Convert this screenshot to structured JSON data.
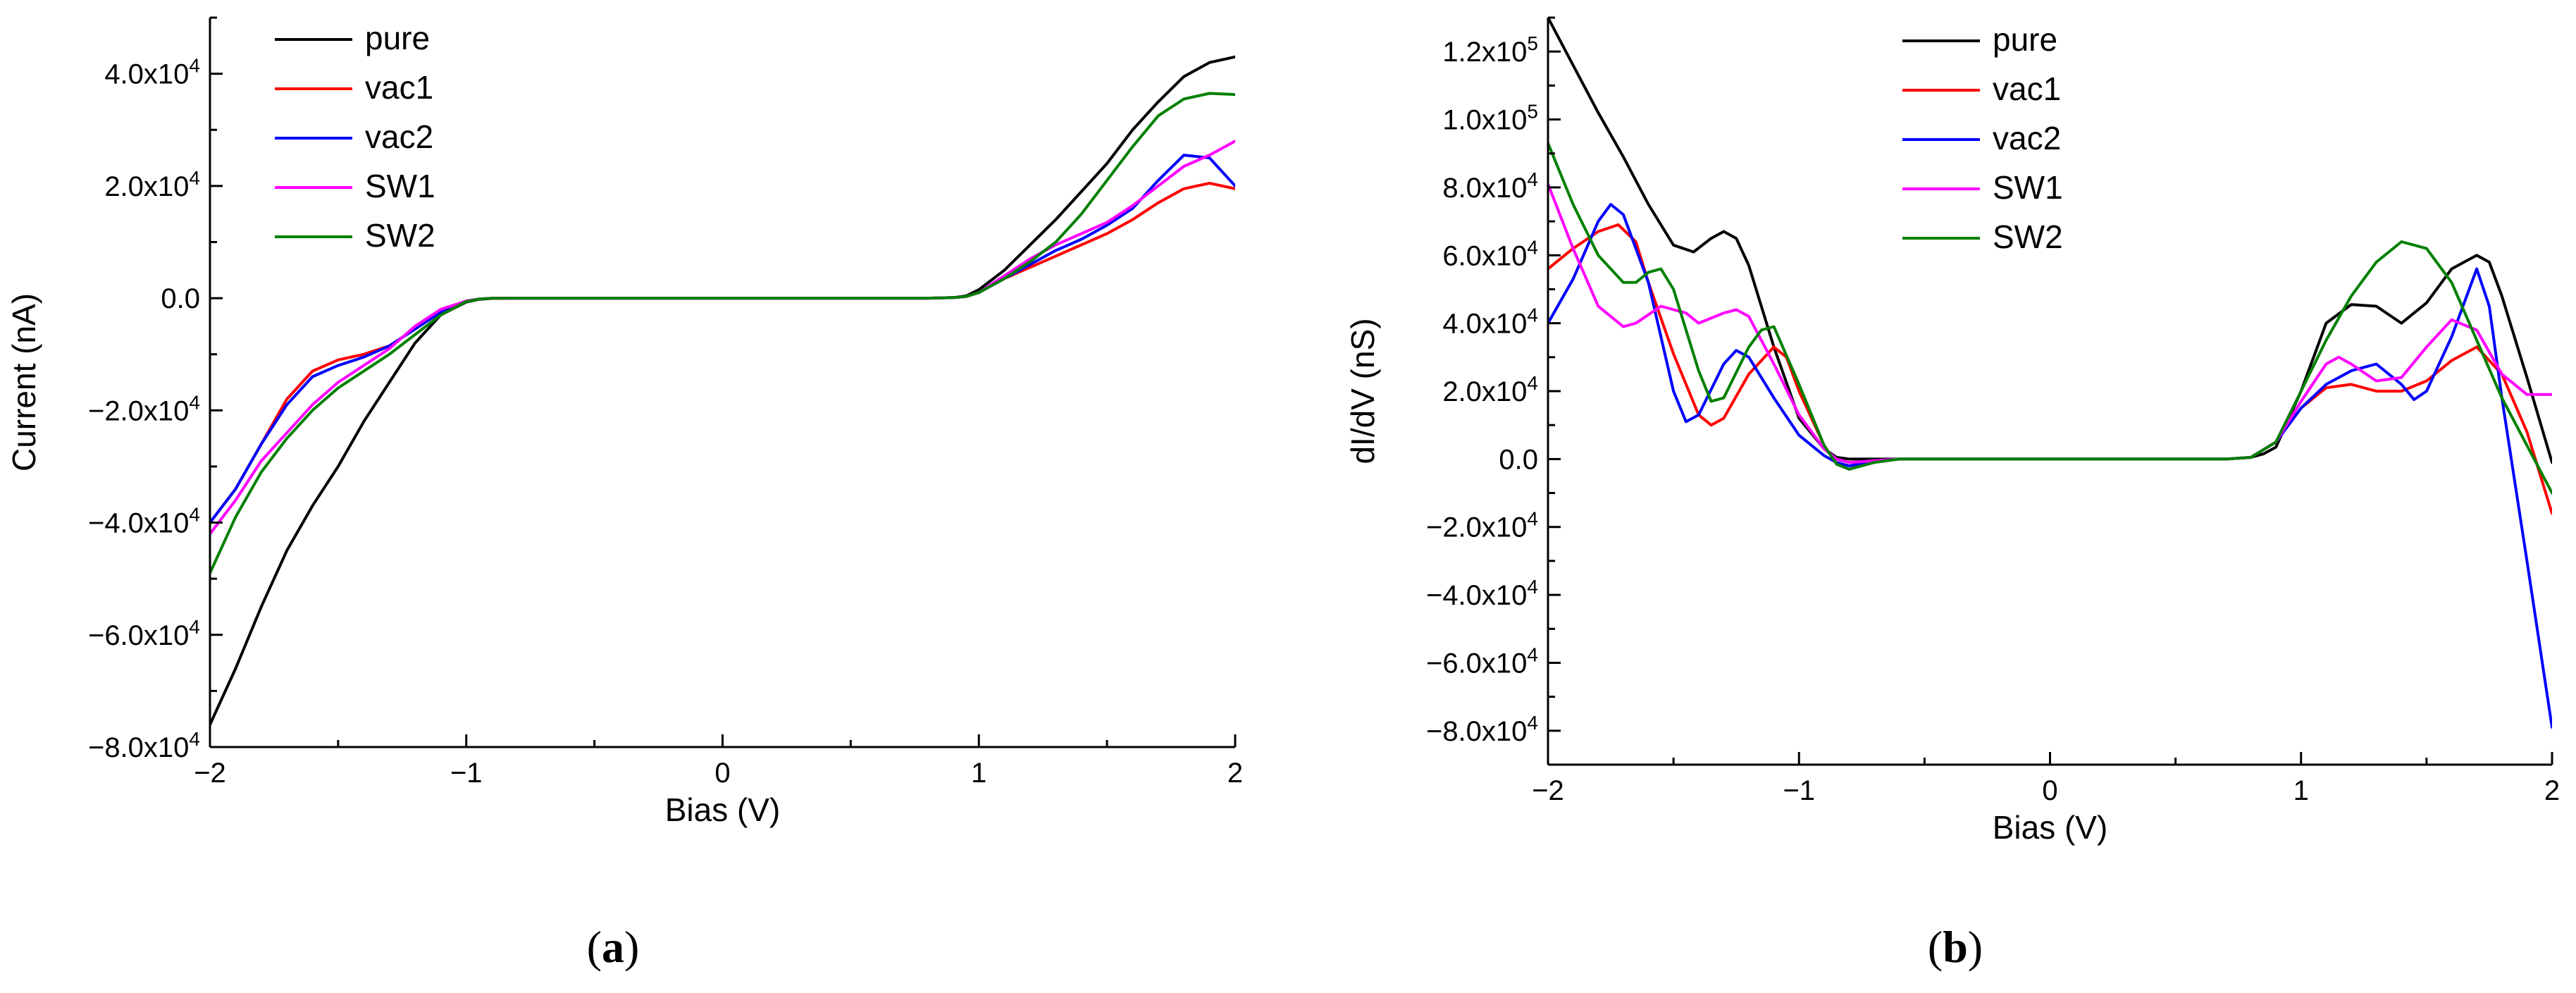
{
  "chart_data": [
    {
      "type": "line",
      "panel_label": "a",
      "title": "",
      "xlabel": "Bias (V)",
      "ylabel": "Current (nA)",
      "xlim": [
        -2,
        2
      ],
      "ylim": [
        -80000,
        50000
      ],
      "x_ticks": [
        -2,
        -1,
        0,
        1,
        2
      ],
      "x_tick_labels": [
        "−2",
        "−1",
        "0",
        "1",
        "2"
      ],
      "y_ticks": [
        -80000,
        -60000,
        -40000,
        -20000,
        0,
        20000,
        40000
      ],
      "y_tick_labels": [
        {
          "mant": "−8.0x10",
          "exp": "4"
        },
        {
          "mant": "−6.0x10",
          "exp": "4"
        },
        {
          "mant": "−4.0x10",
          "exp": "4"
        },
        {
          "mant": "−2.0x10",
          "exp": "4"
        },
        {
          "mant": "0.0",
          "exp": ""
        },
        {
          "mant": "2.0x10",
          "exp": "4"
        },
        {
          "mant": "4.0x10",
          "exp": "4"
        }
      ],
      "grid": false,
      "legend_position": "top-left",
      "series": [
        {
          "name": "pure",
          "color": "#000000",
          "x": [
            -2.0,
            -1.9,
            -1.8,
            -1.7,
            -1.6,
            -1.5,
            -1.4,
            -1.3,
            -1.2,
            -1.1,
            -1.0,
            -0.95,
            -0.9,
            -0.8,
            -0.6,
            -0.4,
            -0.2,
            0.0,
            0.2,
            0.4,
            0.6,
            0.8,
            0.9,
            0.95,
            1.0,
            1.1,
            1.2,
            1.3,
            1.4,
            1.5,
            1.6,
            1.7,
            1.8,
            1.9,
            2.0
          ],
          "y": [
            -76000,
            -66000,
            -55000,
            -45000,
            -37000,
            -30000,
            -22000,
            -15000,
            -8000,
            -3000,
            -700,
            -200,
            -50,
            0,
            0,
            0,
            0,
            0,
            0,
            0,
            0,
            0,
            100,
            400,
            1500,
            5000,
            9500,
            14000,
            19000,
            24000,
            30000,
            35000,
            39500,
            42000,
            43000
          ]
        },
        {
          "name": "vac1",
          "color": "#ff0000",
          "x": [
            -2.0,
            -1.9,
            -1.8,
            -1.7,
            -1.6,
            -1.5,
            -1.4,
            -1.3,
            -1.2,
            -1.1,
            -1.0,
            -0.95,
            -0.9,
            -0.8,
            -0.6,
            -0.4,
            -0.2,
            0.0,
            0.2,
            0.4,
            0.6,
            0.8,
            0.9,
            0.95,
            1.0,
            1.1,
            1.2,
            1.3,
            1.4,
            1.5,
            1.6,
            1.7,
            1.8,
            1.9,
            2.0
          ],
          "y": [
            -40000,
            -34000,
            -26000,
            -18000,
            -13000,
            -11000,
            -10000,
            -8500,
            -5500,
            -2500,
            -500,
            -150,
            -30,
            0,
            0,
            0,
            0,
            0,
            0,
            0,
            0,
            0,
            100,
            300,
            1000,
            3500,
            5500,
            7500,
            9500,
            11500,
            14000,
            17000,
            19500,
            20500,
            19500
          ]
        },
        {
          "name": "vac2",
          "color": "#0000ff",
          "x": [
            -2.0,
            -1.9,
            -1.8,
            -1.7,
            -1.6,
            -1.5,
            -1.4,
            -1.3,
            -1.2,
            -1.1,
            -1.0,
            -0.95,
            -0.9,
            -0.8,
            -0.6,
            -0.4,
            -0.2,
            0.0,
            0.2,
            0.4,
            0.6,
            0.8,
            0.9,
            0.95,
            1.0,
            1.1,
            1.2,
            1.3,
            1.4,
            1.5,
            1.6,
            1.7,
            1.8,
            1.9,
            2.0
          ],
          "y": [
            -40000,
            -34000,
            -26000,
            -19000,
            -14000,
            -12000,
            -10500,
            -8500,
            -5500,
            -2500,
            -500,
            -150,
            -30,
            0,
            0,
            0,
            0,
            0,
            0,
            0,
            0,
            0,
            100,
            300,
            1000,
            3500,
            6000,
            8500,
            10500,
            13000,
            16000,
            21000,
            25500,
            25000,
            20000
          ]
        },
        {
          "name": "SW1",
          "color": "#ff00ff",
          "x": [
            -2.0,
            -1.9,
            -1.8,
            -1.7,
            -1.6,
            -1.5,
            -1.4,
            -1.3,
            -1.2,
            -1.1,
            -1.0,
            -0.95,
            -0.9,
            -0.8,
            -0.6,
            -0.4,
            -0.2,
            0.0,
            0.2,
            0.4,
            0.6,
            0.8,
            0.9,
            0.95,
            1.0,
            1.1,
            1.2,
            1.3,
            1.4,
            1.5,
            1.6,
            1.7,
            1.8,
            1.9,
            2.0
          ],
          "y": [
            -42000,
            -36000,
            -29000,
            -24000,
            -19000,
            -15000,
            -12000,
            -9000,
            -5000,
            -2000,
            -500,
            -150,
            -30,
            0,
            0,
            0,
            0,
            0,
            0,
            0,
            0,
            0,
            100,
            300,
            1000,
            4000,
            7000,
            9500,
            11500,
            13500,
            16500,
            20000,
            23500,
            25500,
            28000
          ]
        },
        {
          "name": "SW2",
          "color": "#008000",
          "x": [
            -2.0,
            -1.9,
            -1.8,
            -1.7,
            -1.6,
            -1.5,
            -1.4,
            -1.3,
            -1.2,
            -1.1,
            -1.0,
            -0.95,
            -0.9,
            -0.8,
            -0.6,
            -0.4,
            -0.2,
            0.0,
            0.2,
            0.4,
            0.6,
            0.8,
            0.9,
            0.95,
            1.0,
            1.1,
            1.2,
            1.3,
            1.4,
            1.5,
            1.6,
            1.7,
            1.8,
            1.9,
            2.0
          ],
          "y": [
            -49000,
            -39000,
            -31000,
            -25000,
            -20000,
            -16000,
            -13000,
            -10000,
            -6500,
            -3000,
            -600,
            -150,
            -30,
            0,
            0,
            0,
            0,
            0,
            0,
            0,
            0,
            0,
            100,
            300,
            1000,
            3500,
            6500,
            10000,
            15000,
            21000,
            27000,
            32500,
            35500,
            36500,
            36300
          ]
        }
      ]
    },
    {
      "type": "line",
      "panel_label": "b",
      "title": "",
      "xlabel": "Bias (V)",
      "ylabel": "dI/dV (nS)",
      "xlim": [
        -2,
        2
      ],
      "ylim": [
        -90000,
        130000
      ],
      "x_ticks": [
        -2,
        -1,
        0,
        1,
        2
      ],
      "x_tick_labels": [
        "−2",
        "−1",
        "0",
        "1",
        "2"
      ],
      "y_ticks": [
        -80000,
        -60000,
        -40000,
        -20000,
        0,
        20000,
        40000,
        60000,
        80000,
        100000,
        120000
      ],
      "y_tick_labels": [
        {
          "mant": "−8.0x10",
          "exp": "4"
        },
        {
          "mant": "−6.0x10",
          "exp": "4"
        },
        {
          "mant": "−4.0x10",
          "exp": "4"
        },
        {
          "mant": "−2.0x10",
          "exp": "4"
        },
        {
          "mant": "0.0",
          "exp": ""
        },
        {
          "mant": "2.0x10",
          "exp": "4"
        },
        {
          "mant": "4.0x10",
          "exp": "4"
        },
        {
          "mant": "6.0x10",
          "exp": "4"
        },
        {
          "mant": "8.0x10",
          "exp": "4"
        },
        {
          "mant": "1.0x10",
          "exp": "5"
        },
        {
          "mant": "1.2x10",
          "exp": "5"
        }
      ],
      "grid": false,
      "legend_position": "top-center",
      "series": [
        {
          "name": "pure",
          "color": "#000000",
          "x": [
            -2.0,
            -1.9,
            -1.8,
            -1.7,
            -1.6,
            -1.5,
            -1.42,
            -1.35,
            -1.3,
            -1.25,
            -1.2,
            -1.1,
            -1.0,
            -0.9,
            -0.85,
            -0.8,
            -0.7,
            -0.6,
            -0.4,
            0.0,
            0.4,
            0.7,
            0.8,
            0.85,
            0.9,
            1.0,
            1.1,
            1.2,
            1.3,
            1.4,
            1.5,
            1.6,
            1.7,
            1.75,
            1.8,
            1.9,
            2.0
          ],
          "y": [
            130000,
            116000,
            102000,
            89000,
            75000,
            63000,
            61000,
            65000,
            67000,
            65000,
            57000,
            33000,
            12000,
            3000,
            500,
            0,
            0,
            0,
            0,
            0,
            0,
            0,
            500,
            1500,
            3500,
            20000,
            40000,
            45500,
            45000,
            40000,
            46000,
            56000,
            60000,
            58000,
            48000,
            24000,
            -1000
          ]
        },
        {
          "name": "vac1",
          "color": "#ff0000",
          "x": [
            -2.0,
            -1.9,
            -1.8,
            -1.72,
            -1.65,
            -1.6,
            -1.5,
            -1.4,
            -1.35,
            -1.3,
            -1.2,
            -1.1,
            -1.05,
            -1.0,
            -0.9,
            -0.85,
            -0.8,
            -0.7,
            -0.6,
            -0.4,
            0.0,
            0.4,
            0.7,
            0.8,
            0.9,
            1.0,
            1.1,
            1.2,
            1.3,
            1.4,
            1.5,
            1.6,
            1.7,
            1.8,
            1.9,
            2.0
          ],
          "y": [
            56000,
            62000,
            67000,
            69000,
            64000,
            52000,
            31000,
            13000,
            10000,
            12000,
            25000,
            33000,
            30000,
            20000,
            4000,
            -1500,
            -3000,
            -500,
            0,
            0,
            0,
            0,
            0,
            500,
            5000,
            15000,
            21000,
            22000,
            20000,
            20000,
            23000,
            29000,
            33000,
            25000,
            8000,
            -16000
          ]
        },
        {
          "name": "vac2",
          "color": "#0000ff",
          "x": [
            -2.0,
            -1.9,
            -1.8,
            -1.75,
            -1.7,
            -1.6,
            -1.5,
            -1.45,
            -1.4,
            -1.3,
            -1.25,
            -1.2,
            -1.1,
            -1.0,
            -0.9,
            -0.85,
            -0.8,
            -0.7,
            -0.6,
            -0.4,
            0.0,
            0.4,
            0.7,
            0.8,
            0.9,
            1.0,
            1.1,
            1.2,
            1.3,
            1.4,
            1.45,
            1.5,
            1.6,
            1.7,
            1.75,
            1.8,
            1.9,
            2.0
          ],
          "y": [
            40000,
            53000,
            70000,
            75000,
            72000,
            52000,
            20000,
            11000,
            13000,
            28000,
            32000,
            30000,
            18000,
            7000,
            1000,
            -1000,
            -2000,
            -500,
            0,
            0,
            0,
            0,
            0,
            500,
            5000,
            15000,
            22000,
            26000,
            28000,
            22000,
            17500,
            20000,
            36000,
            56000,
            45000,
            18000,
            -30000,
            -79000
          ]
        },
        {
          "name": "SW1",
          "color": "#ff00ff",
          "x": [
            -2.0,
            -1.9,
            -1.8,
            -1.7,
            -1.65,
            -1.55,
            -1.45,
            -1.4,
            -1.3,
            -1.25,
            -1.2,
            -1.1,
            -1.0,
            -0.9,
            -0.85,
            -0.8,
            -0.7,
            -0.6,
            -0.4,
            0.0,
            0.4,
            0.7,
            0.8,
            0.9,
            1.0,
            1.1,
            1.15,
            1.2,
            1.3,
            1.4,
            1.5,
            1.6,
            1.7,
            1.8,
            1.9,
            2.0
          ],
          "y": [
            81000,
            62000,
            45000,
            39000,
            40000,
            45000,
            43000,
            40000,
            43000,
            44000,
            42000,
            28000,
            13000,
            3000,
            0,
            -1000,
            -500,
            0,
            0,
            0,
            0,
            0,
            500,
            5000,
            17000,
            28000,
            30000,
            28000,
            23000,
            24000,
            33000,
            41000,
            38000,
            25000,
            19000,
            19000
          ]
        },
        {
          "name": "SW2",
          "color": "#008000",
          "x": [
            -2.0,
            -1.9,
            -1.8,
            -1.7,
            -1.65,
            -1.6,
            -1.55,
            -1.5,
            -1.4,
            -1.35,
            -1.3,
            -1.2,
            -1.15,
            -1.1,
            -1.0,
            -0.9,
            -0.85,
            -0.8,
            -0.7,
            -0.6,
            -0.4,
            0.0,
            0.4,
            0.7,
            0.8,
            0.9,
            1.0,
            1.1,
            1.2,
            1.3,
            1.4,
            1.5,
            1.6,
            1.7,
            1.8,
            1.9,
            2.0
          ],
          "y": [
            93000,
            75000,
            60000,
            52000,
            52000,
            55000,
            56000,
            50000,
            26000,
            17000,
            18000,
            33000,
            38000,
            39000,
            22000,
            4000,
            -1500,
            -3000,
            -1000,
            0,
            0,
            0,
            0,
            0,
            500,
            5000,
            20000,
            35000,
            48000,
            58000,
            64000,
            62000,
            52000,
            35000,
            18000,
            4000,
            -10000
          ]
        }
      ]
    }
  ],
  "captions": [
    "(a)",
    "(b)"
  ]
}
